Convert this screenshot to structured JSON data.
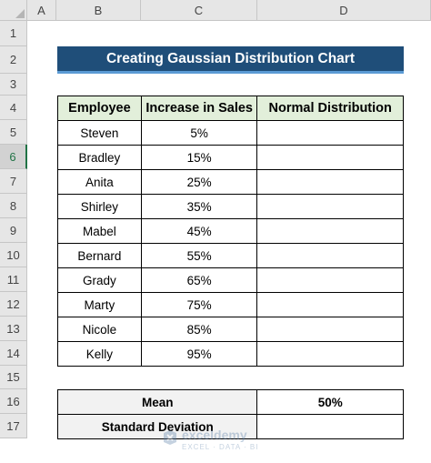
{
  "columns": [
    "A",
    "B",
    "C",
    "D"
  ],
  "rows": [
    "1",
    "2",
    "3",
    "4",
    "5",
    "6",
    "7",
    "8",
    "9",
    "10",
    "11",
    "12",
    "13",
    "14",
    "15",
    "16",
    "17"
  ],
  "selected_row": "6",
  "title": "Creating Gaussian Distribution Chart",
  "table": {
    "headers": [
      "Employee",
      "Increase in Sales",
      "Normal Distribution"
    ],
    "rows": [
      {
        "employee": "Steven",
        "increase": "5%",
        "normal": ""
      },
      {
        "employee": "Bradley",
        "increase": "15%",
        "normal": ""
      },
      {
        "employee": "Anita",
        "increase": "25%",
        "normal": ""
      },
      {
        "employee": "Shirley",
        "increase": "35%",
        "normal": ""
      },
      {
        "employee": "Mabel",
        "increase": "45%",
        "normal": ""
      },
      {
        "employee": "Bernard",
        "increase": "55%",
        "normal": ""
      },
      {
        "employee": "Grady",
        "increase": "65%",
        "normal": ""
      },
      {
        "employee": "Marty",
        "increase": "75%",
        "normal": ""
      },
      {
        "employee": "Nicole",
        "increase": "85%",
        "normal": ""
      },
      {
        "employee": "Kelly",
        "increase": "95%",
        "normal": ""
      }
    ]
  },
  "stats": {
    "mean_label": "Mean",
    "mean_value": "50%",
    "sd_label": "Standard Deviation",
    "sd_value": ""
  },
  "watermark": {
    "brand": "exceldemy",
    "tagline": "EXCEL · DATA · BI"
  },
  "colors": {
    "title_bg": "#1f4e79",
    "header_bg": "#e2efda",
    "stats_bg": "#f2f2f2"
  }
}
